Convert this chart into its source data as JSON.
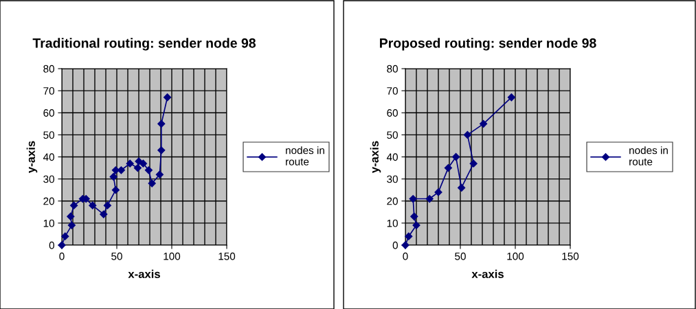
{
  "chart_data": [
    {
      "type": "line",
      "title": "Traditional routing: sender node 98",
      "xlabel": "x-axis",
      "ylabel": "y-axis",
      "marker": "diamond",
      "line_style": "solid",
      "grid": true,
      "legend": "right",
      "xlim": [
        0,
        150
      ],
      "ylim": [
        0,
        80
      ],
      "xticks": [
        0,
        {
          "value": 10,
          "label": null
        },
        {
          "value": 20,
          "label": null
        },
        {
          "value": 30,
          "label": null
        },
        {
          "value": 40,
          "label": null
        },
        50,
        {
          "value": 60,
          "label": null
        },
        {
          "value": 70,
          "label": null
        },
        {
          "value": 80,
          "label": null
        },
        {
          "value": 90,
          "label": null
        },
        100,
        {
          "value": 110,
          "label": null
        },
        {
          "value": 120,
          "label": null
        },
        {
          "value": 130,
          "label": null
        },
        {
          "value": 140,
          "label": null
        },
        150
      ],
      "yticks": [
        0,
        10,
        20,
        30,
        40,
        50,
        60,
        70,
        80
      ],
      "series": [
        {
          "name": "nodes in\nroute",
          "color": "#000080",
          "x": [
            0,
            3,
            9,
            8,
            11,
            19,
            22,
            28,
            38,
            41.5,
            49,
            47,
            49,
            54,
            62,
            69,
            70,
            74,
            79,
            82,
            89,
            90.5,
            90.5,
            96
          ],
          "values": [
            0,
            4,
            9,
            13,
            18,
            21,
            21,
            18,
            14,
            18,
            25,
            31,
            34,
            34,
            37,
            35,
            38,
            37,
            34,
            28,
            32,
            43,
            55,
            67
          ]
        }
      ]
    },
    {
      "type": "line",
      "title": "Proposed routing: sender node 98",
      "xlabel": "x-axis",
      "ylabel": "y-axis",
      "marker": "diamond",
      "line_style": "solid",
      "grid": true,
      "legend": "right",
      "xlim": [
        0,
        150
      ],
      "ylim": [
        0,
        80
      ],
      "xticks": [
        0,
        {
          "value": 10,
          "label": null
        },
        {
          "value": 20,
          "label": null
        },
        {
          "value": 30,
          "label": null
        },
        {
          "value": 40,
          "label": null
        },
        50,
        {
          "value": 60,
          "label": null
        },
        {
          "value": 70,
          "label": null
        },
        {
          "value": 80,
          "label": null
        },
        {
          "value": 90,
          "label": null
        },
        100,
        {
          "value": 110,
          "label": null
        },
        {
          "value": 120,
          "label": null
        },
        {
          "value": 130,
          "label": null
        },
        {
          "value": 140,
          "label": null
        },
        150
      ],
      "yticks": [
        0,
        10,
        20,
        30,
        40,
        50,
        60,
        70,
        80
      ],
      "series": [
        {
          "name": "nodes in\nroute",
          "color": "#000080",
          "x": [
            0,
            3,
            10,
            8,
            7,
            22,
            30,
            39,
            46,
            51,
            62,
            56.5,
            71,
            96.5
          ],
          "values": [
            0,
            4,
            9,
            13,
            21,
            21,
            24,
            35,
            40,
            26,
            37,
            50,
            55,
            67
          ]
        }
      ]
    }
  ]
}
